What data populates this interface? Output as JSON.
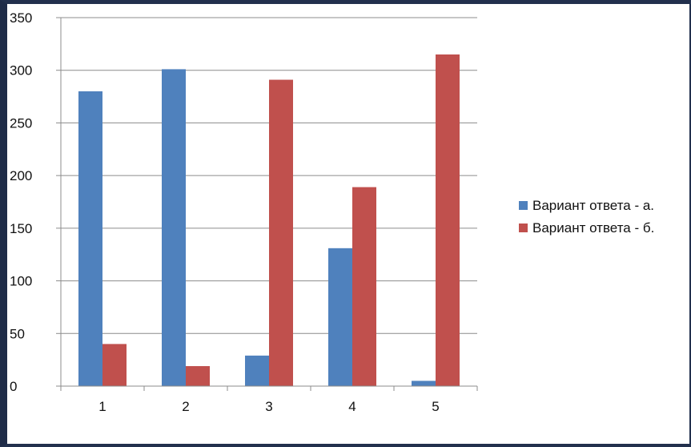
{
  "chart_data": {
    "type": "bar",
    "categories": [
      "1",
      "2",
      "3",
      "4",
      "5"
    ],
    "series": [
      {
        "name": "Вариант ответа - а.",
        "values": [
          280,
          301,
          29,
          131,
          5
        ],
        "color": "#4f81bd"
      },
      {
        "name": "Вариант ответа - б.",
        "values": [
          40,
          19,
          291,
          189,
          315
        ],
        "color": "#c0504d"
      }
    ],
    "ylim": [
      0,
      350
    ],
    "yticks": [
      "0",
      "50",
      "100",
      "150",
      "200",
      "250",
      "300",
      "350"
    ],
    "grid": true,
    "legend_position": "right"
  }
}
